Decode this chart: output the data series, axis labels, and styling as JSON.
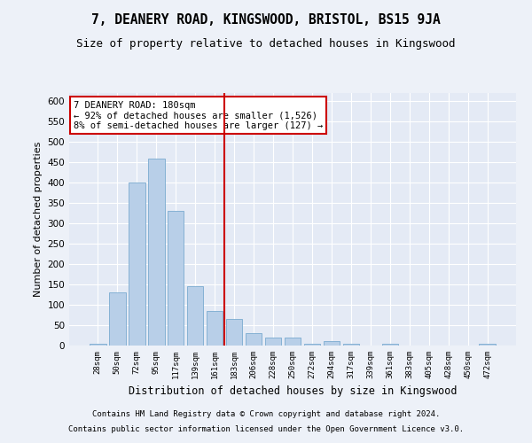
{
  "title": "7, DEANERY ROAD, KINGSWOOD, BRISTOL, BS15 9JA",
  "subtitle": "Size of property relative to detached houses in Kingswood",
  "xlabel": "Distribution of detached houses by size in Kingswood",
  "ylabel": "Number of detached properties",
  "footer1": "Contains HM Land Registry data © Crown copyright and database right 2024.",
  "footer2": "Contains public sector information licensed under the Open Government Licence v3.0.",
  "bar_color": "#b8cfe8",
  "bar_edge_color": "#7aaacf",
  "vline_color": "#cc0000",
  "categories": [
    "28sqm",
    "50sqm",
    "72sqm",
    "95sqm",
    "117sqm",
    "139sqm",
    "161sqm",
    "183sqm",
    "206sqm",
    "228sqm",
    "250sqm",
    "272sqm",
    "294sqm",
    "317sqm",
    "339sqm",
    "361sqm",
    "383sqm",
    "405sqm",
    "428sqm",
    "450sqm",
    "472sqm"
  ],
  "values": [
    5,
    130,
    400,
    460,
    330,
    145,
    85,
    65,
    30,
    20,
    20,
    5,
    10,
    5,
    0,
    5,
    0,
    0,
    0,
    0,
    5
  ],
  "ylim_max": 620,
  "ytick_step": 50,
  "vline_position": 6.5,
  "annotation_title": "7 DEANERY ROAD: 180sqm",
  "annotation_line1": "← 92% of detached houses are smaller (1,526)",
  "annotation_line2": "8% of semi-detached houses are larger (127) →",
  "background_color": "#edf1f8",
  "plot_bg_color": "#e4eaf5",
  "grid_color": "#ffffff"
}
